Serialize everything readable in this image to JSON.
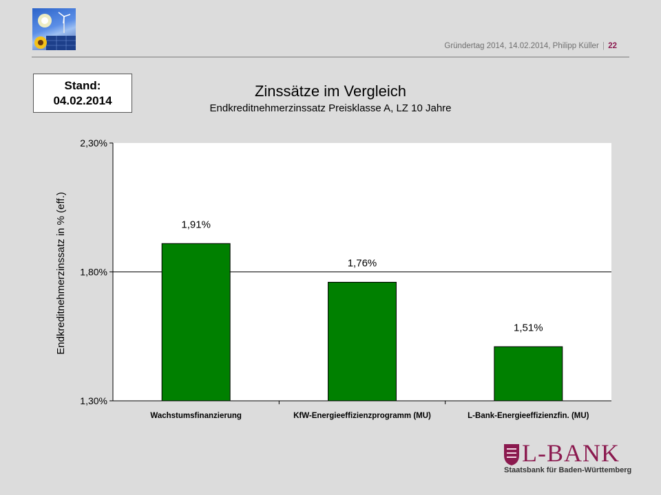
{
  "header": {
    "footer_meta": "Gründertag 2014, 14.02.2014, Philipp Küller",
    "separator": "|",
    "page_number": "22"
  },
  "stand_box": {
    "line1": "Stand:",
    "line2": "04.02.2014"
  },
  "branding": {
    "bank_name": "L-BANK",
    "bank_subtitle": "Staatsbank für Baden-Württemberg",
    "brand_color": "#8b1a4f"
  },
  "chart_data": {
    "type": "bar",
    "title": "Zinssätze im Vergleich",
    "subtitle": "Endkreditnehmerzinssatz Preisklasse A, LZ 10 Jahre",
    "ylabel": "Endkreditnehmerzinssatz in % (eff.)",
    "xlabel": "",
    "categories": [
      "Wachstumsfinanzierung",
      "KfW-Energieeffizienzprogramm (MU)",
      "L-Bank-Energieeffizienzfin. (MU)"
    ],
    "values": [
      1.91,
      1.76,
      1.51
    ],
    "data_labels": [
      "1,91%",
      "1,76%",
      "1,51%"
    ],
    "ylim": [
      1.3,
      2.3
    ],
    "yticks": [
      1.3,
      1.8,
      2.3
    ],
    "ytick_labels": [
      "1,30%",
      "1,80%",
      "2,30%"
    ],
    "gridlines": [
      1.8
    ],
    "bar_color": "#008000",
    "legend": "none"
  }
}
